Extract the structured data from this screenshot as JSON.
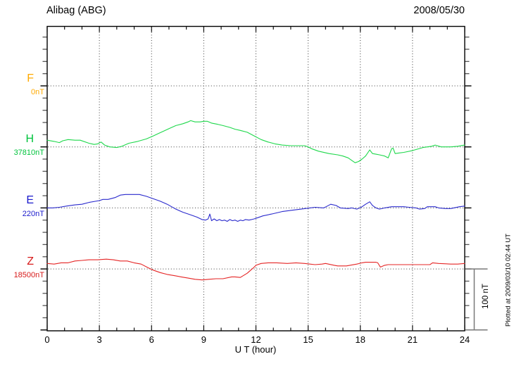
{
  "header": {
    "title": "Alibag (ABG)",
    "date": "2008/05/30"
  },
  "axis": {
    "xlabel": "U T (hour)",
    "x_ticks": [
      0,
      3,
      6,
      9,
      12,
      15,
      18,
      21,
      24
    ],
    "x_minor_step_hours": 1,
    "y_minor_tick_nT": 20,
    "baseline_spacing_nT": 100
  },
  "scale_bar": {
    "label": "100 nT",
    "span_nT": 100
  },
  "footer": {
    "plotted_at": "Plotted at 2009/03/10 02:44 UT"
  },
  "chart_data": {
    "type": "line",
    "title": "Alibag (ABG)",
    "date": "2008/05/30",
    "xlabel": "U T (hour)",
    "xlim": [
      0,
      24
    ],
    "x_ticks": [
      0,
      3,
      6,
      9,
      12,
      15,
      18,
      21,
      24
    ],
    "y_unit": "nT, offset from each channel baseline",
    "y_tick_interval_nT": 20,
    "baseline_spacing_nT": 100,
    "grid": "dotted vertical lines every 3 h; dotted horizontal line at each channel baseline",
    "legend_position": "left margin channel labels",
    "series": [
      {
        "id": "F",
        "label": "F",
        "baseline_label": "0nT",
        "baseline_nT": 0,
        "label_color": "#FFAA00",
        "curve_color": "#FFAA00",
        "note": "no data plotted",
        "points": []
      },
      {
        "id": "H",
        "label": "H",
        "baseline_label": "37810nT",
        "baseline_nT": 37810,
        "label_color": "#00C33C",
        "curve_color": "#1ED84B",
        "points": [
          [
            0,
            11
          ],
          [
            0.4,
            9
          ],
          [
            0.7,
            7
          ],
          [
            0.9,
            10
          ],
          [
            1.2,
            12
          ],
          [
            1.6,
            11
          ],
          [
            1.9,
            11
          ],
          [
            2.4,
            6
          ],
          [
            2.7,
            4
          ],
          [
            2.9,
            5
          ],
          [
            3.1,
            8
          ],
          [
            3.3,
            3
          ],
          [
            3.6,
            0
          ],
          [
            4.0,
            -1
          ],
          [
            4.3,
            1
          ],
          [
            4.7,
            6
          ],
          [
            5.2,
            9
          ],
          [
            5.7,
            13
          ],
          [
            6.1,
            18
          ],
          [
            6.4,
            22
          ],
          [
            6.7,
            26
          ],
          [
            7.0,
            30
          ],
          [
            7.4,
            35
          ],
          [
            7.8,
            38
          ],
          [
            8.1,
            41
          ],
          [
            8.25,
            43
          ],
          [
            8.5,
            41
          ],
          [
            8.8,
            41
          ],
          [
            9.0,
            42
          ],
          [
            9.2,
            42
          ],
          [
            9.45,
            39
          ],
          [
            9.8,
            37
          ],
          [
            10.1,
            35
          ],
          [
            10.5,
            32
          ],
          [
            10.8,
            29
          ],
          [
            11.1,
            27
          ],
          [
            11.5,
            24
          ],
          [
            11.9,
            18
          ],
          [
            12.3,
            12
          ],
          [
            12.7,
            8
          ],
          [
            13.1,
            5
          ],
          [
            13.5,
            3
          ],
          [
            14.0,
            2
          ],
          [
            14.4,
            2
          ],
          [
            14.8,
            2
          ],
          [
            15.0,
            0
          ],
          [
            15.2,
            -3
          ],
          [
            15.6,
            -7
          ],
          [
            16.2,
            -11
          ],
          [
            16.7,
            -13
          ],
          [
            17.0,
            -15
          ],
          [
            17.3,
            -18
          ],
          [
            17.5,
            -22
          ],
          [
            17.7,
            -26
          ],
          [
            17.9,
            -24
          ],
          [
            18.1,
            -20
          ],
          [
            18.3,
            -15
          ],
          [
            18.54,
            -5
          ],
          [
            18.7,
            -11
          ],
          [
            18.9,
            -12
          ],
          [
            19.1,
            -13
          ],
          [
            19.4,
            -15
          ],
          [
            19.6,
            -18
          ],
          [
            19.8,
            -3
          ],
          [
            19.88,
            -2
          ],
          [
            20.0,
            -11
          ],
          [
            20.2,
            -10
          ],
          [
            20.5,
            -9
          ],
          [
            21.0,
            -6
          ],
          [
            21.6,
            -1
          ],
          [
            22.1,
            1
          ],
          [
            22.3,
            3
          ],
          [
            22.65,
            0
          ],
          [
            23.2,
            0
          ],
          [
            23.6,
            1
          ],
          [
            24,
            3
          ]
        ]
      },
      {
        "id": "E",
        "label": "E",
        "baseline_label": "220nT",
        "baseline_nT": 220,
        "label_color": "#1A1ACC",
        "curve_color": "#2A2ACD",
        "points": [
          [
            0,
            0
          ],
          [
            0.3,
            0
          ],
          [
            0.7,
            1
          ],
          [
            1.1,
            3
          ],
          [
            1.6,
            5
          ],
          [
            2.0,
            6
          ],
          [
            2.4,
            9
          ],
          [
            3.0,
            12
          ],
          [
            3.2,
            14
          ],
          [
            3.5,
            14
          ],
          [
            3.9,
            17
          ],
          [
            4.2,
            21
          ],
          [
            4.5,
            22
          ],
          [
            5.0,
            22
          ],
          [
            5.3,
            22
          ],
          [
            5.7,
            19
          ],
          [
            6.1,
            15
          ],
          [
            6.5,
            11
          ],
          [
            6.9,
            6
          ],
          [
            7.15,
            2
          ],
          [
            7.4,
            -2
          ],
          [
            7.8,
            -7
          ],
          [
            8.2,
            -11
          ],
          [
            8.6,
            -15
          ],
          [
            8.9,
            -19
          ],
          [
            9.1,
            -20
          ],
          [
            9.25,
            -18
          ],
          [
            9.35,
            -10
          ],
          [
            9.45,
            -21
          ],
          [
            9.6,
            -18
          ],
          [
            9.75,
            -21
          ],
          [
            9.9,
            -19
          ],
          [
            10.05,
            -21
          ],
          [
            10.2,
            -20
          ],
          [
            10.35,
            -22
          ],
          [
            10.5,
            -19
          ],
          [
            10.65,
            -21
          ],
          [
            10.8,
            -20
          ],
          [
            10.95,
            -22
          ],
          [
            11.1,
            -20
          ],
          [
            11.25,
            -21
          ],
          [
            11.4,
            -19
          ],
          [
            11.6,
            -20
          ],
          [
            11.75,
            -19
          ],
          [
            11.9,
            -18
          ],
          [
            12.1,
            -16
          ],
          [
            12.4,
            -13
          ],
          [
            12.9,
            -10
          ],
          [
            13.5,
            -6
          ],
          [
            14.0,
            -4
          ],
          [
            14.6,
            -2
          ],
          [
            15.1,
            0
          ],
          [
            15.4,
            1
          ],
          [
            15.9,
            0
          ],
          [
            16.1,
            3
          ],
          [
            16.3,
            6
          ],
          [
            16.6,
            4
          ],
          [
            16.85,
            0
          ],
          [
            17.3,
            -1
          ],
          [
            17.5,
            0
          ],
          [
            17.8,
            -2
          ],
          [
            18.1,
            2
          ],
          [
            18.3,
            6
          ],
          [
            18.54,
            10
          ],
          [
            18.7,
            4
          ],
          [
            18.9,
            0
          ],
          [
            19.1,
            -2
          ],
          [
            19.4,
            0
          ],
          [
            19.8,
            2
          ],
          [
            20.2,
            2
          ],
          [
            20.5,
            2
          ],
          [
            20.8,
            1
          ],
          [
            21.2,
            0
          ],
          [
            21.4,
            -2
          ],
          [
            21.7,
            -1
          ],
          [
            21.85,
            2
          ],
          [
            22.3,
            2
          ],
          [
            22.5,
            0
          ],
          [
            22.9,
            -1
          ],
          [
            23.2,
            -1
          ],
          [
            23.7,
            2
          ],
          [
            24,
            3
          ]
        ]
      },
      {
        "id": "Z",
        "label": "Z",
        "baseline_label": "18500nT",
        "baseline_nT": 18500,
        "label_color": "#D71A1A",
        "curve_color": "#E52525",
        "points": [
          [
            0,
            9
          ],
          [
            0.4,
            8
          ],
          [
            0.8,
            10
          ],
          [
            1.2,
            10
          ],
          [
            1.6,
            13
          ],
          [
            2.0,
            14
          ],
          [
            2.4,
            15
          ],
          [
            2.9,
            15
          ],
          [
            3.4,
            16
          ],
          [
            3.8,
            15
          ],
          [
            4.2,
            13
          ],
          [
            4.6,
            13
          ],
          [
            5.0,
            10
          ],
          [
            5.4,
            8
          ],
          [
            5.8,
            2
          ],
          [
            6.1,
            -2
          ],
          [
            6.5,
            -6
          ],
          [
            6.9,
            -9
          ],
          [
            7.3,
            -11
          ],
          [
            7.7,
            -13
          ],
          [
            8.1,
            -15
          ],
          [
            8.5,
            -17
          ],
          [
            8.9,
            -18
          ],
          [
            9.3,
            -17
          ],
          [
            9.7,
            -16
          ],
          [
            10.1,
            -16
          ],
          [
            10.6,
            -13
          ],
          [
            10.8,
            -13
          ],
          [
            11.1,
            -14
          ],
          [
            11.5,
            -7
          ],
          [
            11.7,
            -2
          ],
          [
            11.9,
            3
          ],
          [
            12.0,
            6
          ],
          [
            12.3,
            9
          ],
          [
            12.7,
            10
          ],
          [
            13.2,
            10
          ],
          [
            13.8,
            9
          ],
          [
            14.3,
            10
          ],
          [
            14.8,
            9
          ],
          [
            15.1,
            8
          ],
          [
            15.4,
            7
          ],
          [
            15.8,
            8
          ],
          [
            16.0,
            9
          ],
          [
            16.5,
            6
          ],
          [
            16.7,
            5
          ],
          [
            17.2,
            5
          ],
          [
            17.8,
            8
          ],
          [
            18.1,
            10
          ],
          [
            18.3,
            11
          ],
          [
            18.9,
            11
          ],
          [
            19.0,
            10
          ],
          [
            19.15,
            3
          ],
          [
            19.4,
            6
          ],
          [
            19.6,
            7
          ],
          [
            20.0,
            7
          ],
          [
            20.5,
            7
          ],
          [
            21.0,
            7
          ],
          [
            21.3,
            7
          ],
          [
            21.6,
            7
          ],
          [
            22.0,
            7
          ],
          [
            22.15,
            10
          ],
          [
            22.5,
            9
          ],
          [
            23.2,
            8
          ],
          [
            23.6,
            8
          ],
          [
            24,
            9
          ]
        ]
      }
    ]
  }
}
